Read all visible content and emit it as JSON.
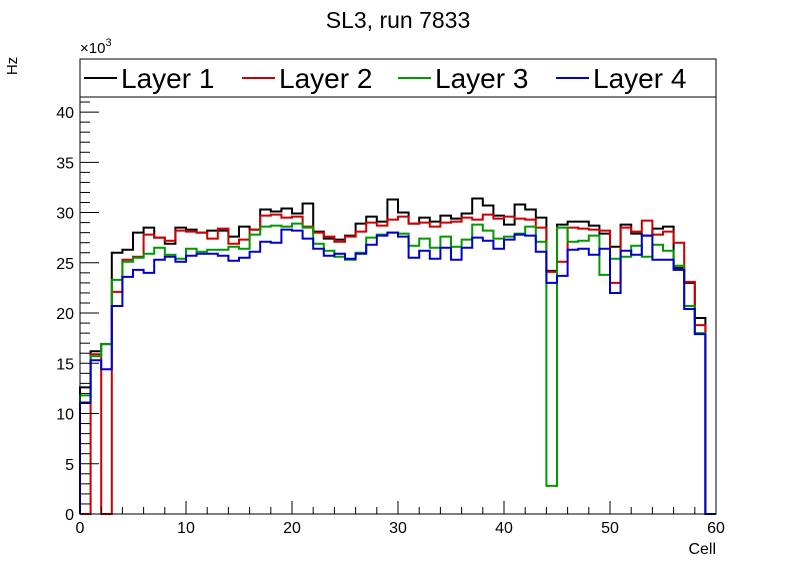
{
  "chart_data": {
    "type": "line",
    "title": "SL3, run 7833",
    "xlabel": "Cell",
    "ylabel": "Hz",
    "y_multiplier_label": "×10",
    "y_multiplier_exponent": "3",
    "xlim": [
      0,
      60
    ],
    "ylim": [
      0,
      41.5
    ],
    "x_ticks": [
      0,
      10,
      20,
      30,
      40,
      50,
      60
    ],
    "y_ticks": [
      0,
      5,
      10,
      15,
      20,
      25,
      30,
      35,
      40
    ],
    "legend_position": "top",
    "grid": false,
    "series": [
      {
        "name": "Layer 1",
        "color": "#000000",
        "values": [
          12.6,
          16.2,
          16.9,
          26.0,
          26.3,
          28.0,
          28.5,
          27.5,
          26.9,
          28.5,
          28.3,
          28.0,
          28.2,
          28.2,
          27.6,
          28.6,
          28.3,
          30.3,
          30.1,
          30.4,
          29.9,
          30.9,
          28.1,
          27.4,
          27.3,
          27.7,
          28.9,
          29.6,
          29.1,
          31.3,
          30.0,
          28.9,
          29.5,
          29.1,
          29.7,
          29.4,
          29.9,
          31.4,
          30.7,
          29.7,
          28.8,
          30.8,
          30.3,
          29.5,
          24.2,
          28.8,
          29.1,
          29.1,
          28.7,
          27.9,
          26.6,
          28.8,
          27.9,
          27.7,
          28.4,
          28.6,
          24.5,
          23.0,
          19.5,
          0
        ]
      },
      {
        "name": "Layer 2",
        "color": "#cc0000",
        "values": [
          0,
          15.9,
          0,
          22.1,
          25.3,
          25.6,
          27.8,
          27.5,
          27.2,
          28.2,
          28.1,
          28.0,
          27.4,
          28.4,
          26.9,
          27.3,
          28.3,
          29.7,
          29.8,
          29.5,
          29.6,
          28.6,
          28.0,
          27.6,
          27.1,
          27.6,
          28.1,
          29.0,
          28.7,
          29.3,
          29.6,
          28.9,
          29.0,
          28.6,
          29.0,
          29.1,
          29.5,
          29.3,
          29.8,
          29.4,
          29.6,
          29.4,
          29.3,
          28.5,
          24.1,
          25.1,
          28.5,
          28.4,
          28.3,
          28.2,
          23.0,
          28.5,
          28.1,
          29.2,
          27.8,
          28.1,
          27.0,
          23.1,
          18.8,
          0
        ]
      },
      {
        "name": "Layer 3",
        "color": "#009900",
        "values": [
          11.8,
          15.7,
          16.9,
          23.3,
          25.1,
          25.5,
          25.9,
          26.5,
          25.8,
          25.4,
          26.4,
          26.1,
          26.3,
          26.3,
          26.6,
          26.4,
          27.8,
          28.6,
          28.7,
          28.6,
          28.9,
          28.5,
          26.9,
          26.2,
          25.6,
          25.3,
          26.0,
          27.5,
          27.8,
          28.0,
          27.9,
          26.7,
          27.4,
          26.5,
          27.6,
          26.6,
          27.3,
          28.8,
          28.2,
          27.4,
          27.6,
          27.9,
          28.6,
          27.1,
          2.8,
          28.5,
          27.1,
          27.2,
          27.7,
          23.8,
          25.4,
          25.6,
          26.7,
          25.6,
          26.8,
          26.2,
          24.7,
          20.7,
          18.0,
          0
        ]
      },
      {
        "name": "Layer 4",
        "color": "#0000cc",
        "values": [
          11.1,
          15.3,
          14.4,
          20.7,
          23.6,
          24.3,
          24.0,
          25.3,
          25.6,
          25.1,
          25.7,
          25.9,
          25.9,
          25.7,
          25.2,
          25.5,
          26.1,
          27.1,
          27.0,
          28.3,
          28.2,
          27.4,
          26.4,
          25.7,
          25.9,
          25.4,
          25.9,
          26.8,
          27.7,
          28.0,
          27.6,
          25.5,
          26.2,
          25.4,
          26.5,
          25.3,
          26.5,
          27.5,
          27.2,
          26.4,
          27.3,
          27.8,
          27.7,
          26.1,
          23.0,
          23.7,
          26.3,
          26.4,
          25.8,
          26.4,
          22.0,
          26.2,
          25.8,
          27.7,
          25.3,
          25.3,
          24.3,
          20.4,
          17.9,
          0
        ]
      }
    ]
  }
}
